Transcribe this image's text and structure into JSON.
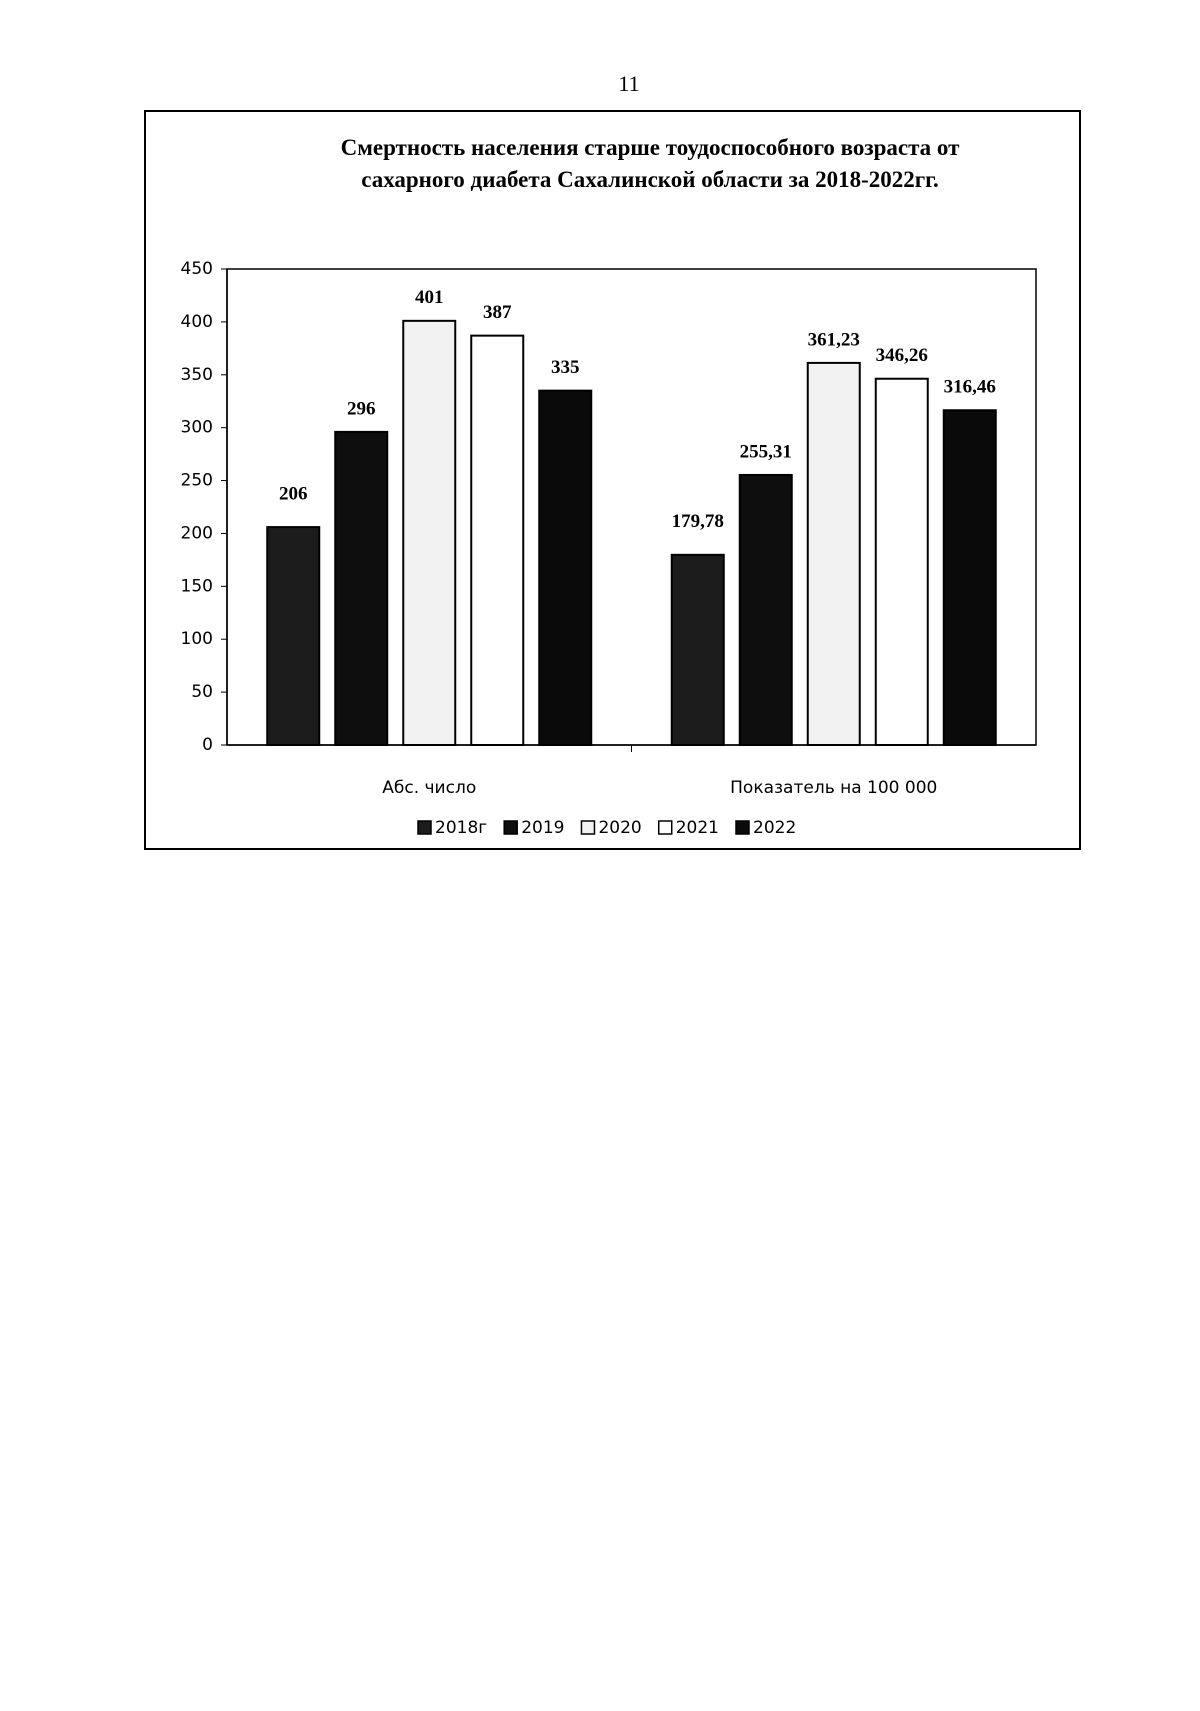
{
  "page_number": "11",
  "chart_data": {
    "type": "bar",
    "title": "Смертность населения старше тоудоспособного возраста от сахарного диабета Сахалинской области за 2018-2022гг.",
    "categories": [
      "Абс. число",
      "Показатель на 100 000"
    ],
    "series": [
      {
        "name": "2018г",
        "color": "#1c1c1c",
        "values": [
          206,
          179.78
        ],
        "value_labels": [
          "206",
          "179,78"
        ]
      },
      {
        "name": "2019",
        "color": "#0e0e0e",
        "values": [
          296,
          255.31
        ],
        "value_labels": [
          "296",
          "255,31"
        ]
      },
      {
        "name": "2020",
        "color": "#f2f2f2",
        "values": [
          401,
          361.23
        ],
        "value_labels": [
          "401",
          "361,23"
        ]
      },
      {
        "name": "2021",
        "color": "#ffffff",
        "values": [
          387,
          346.26
        ],
        "value_labels": [
          "387",
          "346,26"
        ]
      },
      {
        "name": "2022",
        "color": "#0a0a0a",
        "values": [
          335,
          316.46
        ],
        "value_labels": [
          "335",
          "316,46"
        ]
      }
    ],
    "ylim": [
      0,
      450
    ],
    "yticks": [
      0,
      50,
      100,
      150,
      200,
      250,
      300,
      350,
      400,
      450
    ],
    "legend": "bottom"
  }
}
